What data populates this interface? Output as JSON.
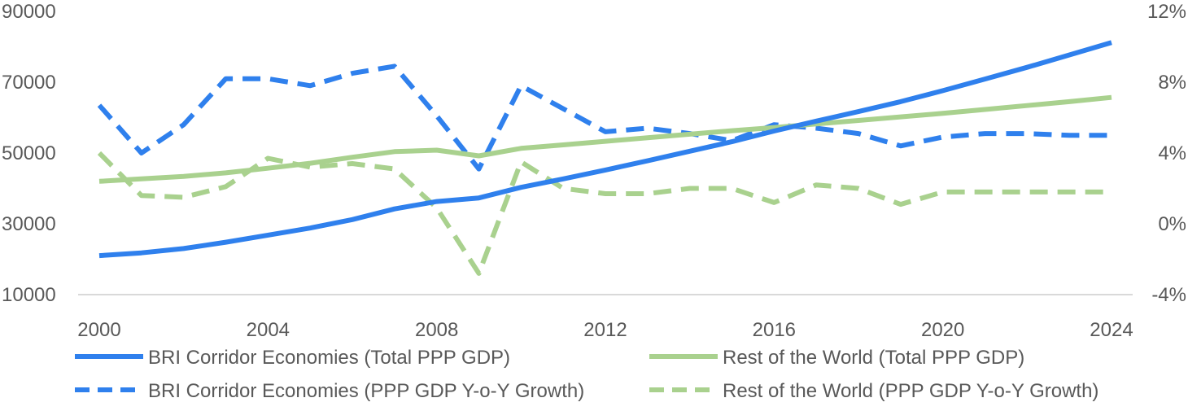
{
  "chart_data": {
    "type": "line",
    "title": "",
    "xlabel": "",
    "ylabel_left": "",
    "ylabel_right": "",
    "x": [
      2000,
      2001,
      2002,
      2003,
      2004,
      2005,
      2006,
      2007,
      2008,
      2009,
      2010,
      2011,
      2012,
      2013,
      2014,
      2015,
      2016,
      2017,
      2018,
      2019,
      2020,
      2021,
      2022,
      2023,
      2024
    ],
    "xlim": [
      2000,
      2024
    ],
    "x_ticks": [
      "2000",
      "2004",
      "2008",
      "2012",
      "2016",
      "2020",
      "2024"
    ],
    "ylim_left": [
      10000,
      90000
    ],
    "y_ticks_left": [
      "10000",
      "30000",
      "50000",
      "70000",
      "90000"
    ],
    "ylim_right": [
      -4,
      12
    ],
    "y_ticks_right": [
      "-4%",
      "0%",
      "4%",
      "8%",
      "12%"
    ],
    "grid": false,
    "legend_position": "bottom",
    "series": [
      {
        "name": "BRI Corridor Economies (Total PPP GDP)",
        "axis": "left",
        "color": "#2f80ed",
        "style": "solid",
        "values": [
          21000,
          21800,
          23000,
          24800,
          26800,
          28800,
          31200,
          34200,
          36300,
          37300,
          40300,
          42700,
          45200,
          47800,
          50500,
          53200,
          56200,
          59000,
          61700,
          64500,
          67600,
          70900,
          74200,
          77700,
          81200
        ]
      },
      {
        "name": "Rest of the World (Total PPP GDP)",
        "axis": "left",
        "color": "#a9d18e",
        "style": "solid",
        "values": [
          42000,
          42700,
          43400,
          44400,
          45700,
          47100,
          48800,
          50400,
          50800,
          49200,
          51300,
          52300,
          53300,
          54300,
          55300,
          56300,
          57200,
          58200,
          59200,
          60200,
          61200,
          62300,
          63400,
          64500,
          65700
        ]
      },
      {
        "name": "BRI Corridor Economies (PPP GDP Y-o-Y Growth)",
        "axis": "right",
        "color": "#2f80ed",
        "style": "dashed",
        "values": [
          6.7,
          4.0,
          5.6,
          8.2,
          8.2,
          7.8,
          8.5,
          8.9,
          6.1,
          3.1,
          7.8,
          6.5,
          5.2,
          5.4,
          5.1,
          4.7,
          5.6,
          5.4,
          5.1,
          4.4,
          4.9,
          5.1,
          5.1,
          5.0,
          5.0
        ]
      },
      {
        "name": "Rest of the World (PPP GDP Y-o-Y Growth)",
        "axis": "right",
        "color": "#a9d18e",
        "style": "dashed",
        "values": [
          4.0,
          1.6,
          1.5,
          2.1,
          3.7,
          3.2,
          3.4,
          3.1,
          0.9,
          -2.8,
          3.5,
          2.0,
          1.7,
          1.7,
          2.0,
          2.0,
          1.2,
          2.2,
          2.0,
          1.1,
          1.8,
          1.8,
          1.8,
          1.8,
          1.8
        ]
      }
    ]
  }
}
